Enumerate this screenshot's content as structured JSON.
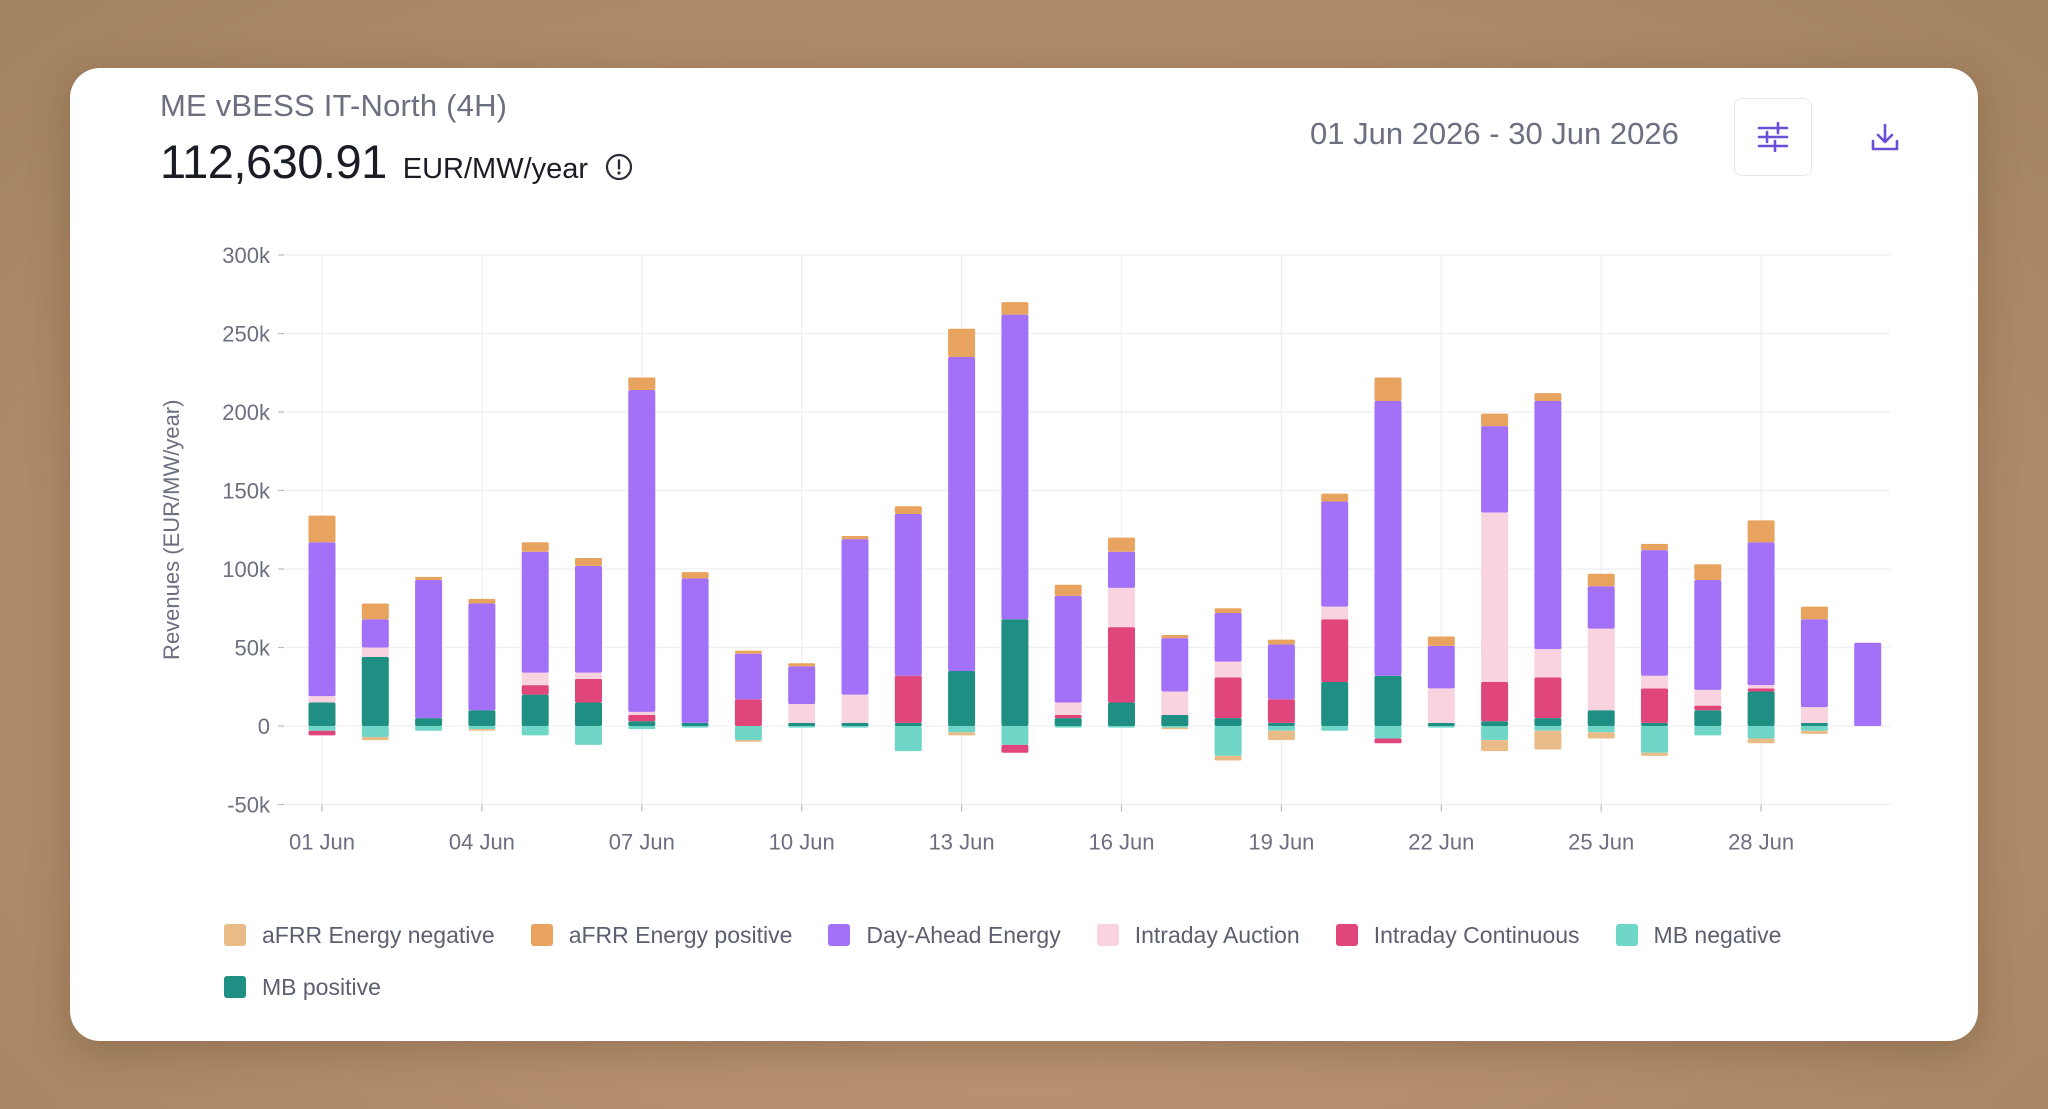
{
  "header": {
    "asset_name": "ME vBESS IT-North (4H)",
    "kpi_value": "112,630.91",
    "kpi_unit": "EUR/MW/year",
    "date_range": "01 Jun 2026 - 30 Jun 2026"
  },
  "icons": {
    "info": "info-circle-icon",
    "settings": "sliders-icon",
    "download": "download-icon"
  },
  "colors": {
    "aFRR Energy negative": "#e9bb87",
    "aFRR Energy positive": "#e8a35e",
    "Day-Ahead Energy": "#a371f7",
    "Intraday Auction": "#f9d3e0",
    "Intraday Continuous": "#e0467c",
    "MB negative": "#70d6c8",
    "MB positive": "#1e8f82",
    "accent": "#6b4fd6"
  },
  "chart_data": {
    "type": "bar",
    "stacked": true,
    "ylabel": "Revenues (EUR/MW/year)",
    "ylim": [
      -50000,
      300000
    ],
    "yticks": [
      -50000,
      0,
      50000,
      100000,
      150000,
      200000,
      250000,
      300000
    ],
    "ytick_labels": [
      "-50k",
      "0",
      "50k",
      "100k",
      "150k",
      "200k",
      "250k",
      "300k"
    ],
    "xtick_labels": [
      "01 Jun",
      "04 Jun",
      "07 Jun",
      "10 Jun",
      "13 Jun",
      "16 Jun",
      "19 Jun",
      "22 Jun",
      "25 Jun",
      "28 Jun"
    ],
    "xtick_every": 3,
    "grid": true,
    "legend_position": "bottom",
    "categories": [
      "01 Jun",
      "02 Jun",
      "03 Jun",
      "04 Jun",
      "05 Jun",
      "06 Jun",
      "07 Jun",
      "08 Jun",
      "09 Jun",
      "10 Jun",
      "11 Jun",
      "12 Jun",
      "13 Jun",
      "14 Jun",
      "15 Jun",
      "16 Jun",
      "17 Jun",
      "18 Jun",
      "19 Jun",
      "20 Jun",
      "21 Jun",
      "22 Jun",
      "23 Jun",
      "24 Jun",
      "25 Jun",
      "26 Jun",
      "27 Jun",
      "28 Jun",
      "29 Jun",
      "30 Jun"
    ],
    "series": [
      {
        "name": "MB positive",
        "values": [
          15000,
          44000,
          5000,
          10000,
          20000,
          15000,
          3000,
          2000,
          0,
          2000,
          2000,
          2000,
          35000,
          68000,
          5000,
          15000,
          7000,
          5000,
          2000,
          28000,
          32000,
          2000,
          3000,
          5000,
          10000,
          2000,
          10000,
          22000,
          2000,
          0
        ]
      },
      {
        "name": "Intraday Continuous",
        "values": [
          0,
          0,
          0,
          0,
          6000,
          15000,
          4000,
          0,
          17000,
          0,
          0,
          30000,
          0,
          0,
          2000,
          48000,
          0,
          26000,
          15000,
          40000,
          0,
          0,
          25000,
          26000,
          0,
          22000,
          3000,
          2000,
          0,
          0
        ]
      },
      {
        "name": "Intraday Auction",
        "values": [
          4000,
          6000,
          0,
          0,
          8000,
          4000,
          2000,
          0,
          0,
          12000,
          18000,
          0,
          0,
          0,
          8000,
          25000,
          15000,
          10000,
          0,
          8000,
          0,
          22000,
          108000,
          18000,
          52000,
          8000,
          10000,
          2000,
          10000,
          0
        ]
      },
      {
        "name": "Day-Ahead Energy",
        "values": [
          98000,
          18000,
          88000,
          68000,
          77000,
          68000,
          205000,
          92000,
          29000,
          24000,
          99000,
          103000,
          200000,
          194000,
          68000,
          23000,
          34000,
          31000,
          35000,
          67000,
          175000,
          27000,
          55000,
          158000,
          27000,
          80000,
          70000,
          91000,
          56000,
          53000
        ]
      },
      {
        "name": "aFRR Energy positive",
        "values": [
          17000,
          10000,
          2000,
          3000,
          6000,
          5000,
          8000,
          4000,
          2000,
          2000,
          2000,
          5000,
          18000,
          8000,
          7000,
          9000,
          2000,
          3000,
          3000,
          5000,
          15000,
          6000,
          8000,
          5000,
          8000,
          4000,
          10000,
          14000,
          8000,
          0
        ]
      },
      {
        "name": "MB negative",
        "values": [
          -3000,
          -7000,
          -3000,
          -2000,
          -6000,
          -12000,
          -2000,
          -1000,
          -9000,
          -1000,
          -1000,
          -16000,
          -4000,
          -12000,
          -1000,
          -1000,
          -1000,
          -19000,
          -3000,
          -3000,
          -8000,
          -1000,
          -9000,
          -3000,
          -4000,
          -17000,
          -6000,
          -8000,
          -3000,
          0
        ]
      },
      {
        "name": "Intraday Continuous",
        "values": [
          -3000,
          0,
          0,
          0,
          0,
          0,
          0,
          0,
          0,
          0,
          0,
          0,
          0,
          -5000,
          0,
          0,
          0,
          0,
          0,
          0,
          -3000,
          0,
          0,
          0,
          0,
          0,
          0,
          0,
          0,
          0
        ]
      },
      {
        "name": "aFRR Energy negative",
        "values": [
          0,
          -2000,
          0,
          -1000,
          0,
          0,
          0,
          0,
          -1000,
          0,
          0,
          0,
          -2000,
          0,
          0,
          0,
          -1000,
          -3000,
          -6000,
          0,
          0,
          0,
          -7000,
          -12000,
          -4000,
          -2000,
          0,
          -3000,
          -2000,
          0
        ]
      }
    ]
  },
  "legend": [
    {
      "label": "aFRR Energy negative",
      "color": "#e9bb87"
    },
    {
      "label": "aFRR Energy positive",
      "color": "#e8a35e"
    },
    {
      "label": "Day-Ahead Energy",
      "color": "#a371f7"
    },
    {
      "label": "Intraday Auction",
      "color": "#f9d3e0"
    },
    {
      "label": "Intraday Continuous",
      "color": "#e0467c"
    },
    {
      "label": "MB negative",
      "color": "#70d6c8"
    },
    {
      "label": "MB positive",
      "color": "#1e8f82"
    }
  ]
}
